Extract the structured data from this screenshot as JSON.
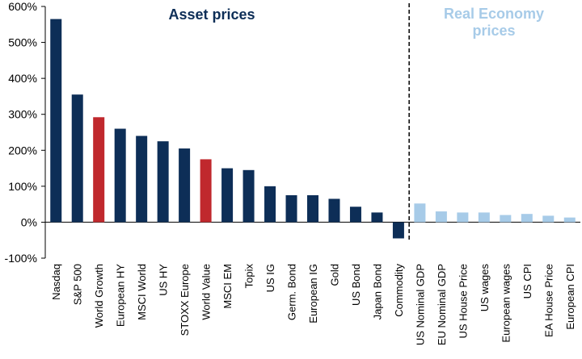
{
  "chart_data": {
    "type": "bar",
    "title": "",
    "xlabel": "",
    "ylabel": "",
    "ylim": [
      -100,
      600
    ],
    "yticks": [
      -100,
      0,
      100,
      200,
      300,
      400,
      500,
      600
    ],
    "ytick_labels": [
      "-100%",
      "0%",
      "100%",
      "200%",
      "300%",
      "400%",
      "500%",
      "600%"
    ],
    "sections": [
      {
        "title": "Asset prices",
        "start": 0,
        "end": 16
      },
      {
        "title_lines": [
          "Real Economy",
          "prices"
        ],
        "start": 17,
        "end": 24
      }
    ],
    "categories": [
      "Nasdaq",
      "S&P 500",
      "World Growth",
      "European HY",
      "MSCI World",
      "US HY",
      "STOXX Europe",
      "World Value",
      "MSCI EM",
      "Topix",
      "US IG",
      "Germ. Bond",
      "European IG",
      "Gold",
      "US Bond",
      "Japan Bond",
      "Commodity",
      "US Nominal GDP",
      "EU Nominal GDP",
      "US House Price",
      "US wages",
      "European wages",
      "US CPI",
      "EA House Price",
      "European CPI"
    ],
    "values": [
      565,
      355,
      292,
      260,
      240,
      225,
      205,
      175,
      150,
      145,
      100,
      75,
      75,
      65,
      43,
      27,
      -45,
      52,
      30,
      27,
      27,
      20,
      23,
      18,
      13
    ],
    "colors": [
      "#0d2e57",
      "#0d2e57",
      "#c0282d",
      "#0d2e57",
      "#0d2e57",
      "#0d2e57",
      "#0d2e57",
      "#c0282d",
      "#0d2e57",
      "#0d2e57",
      "#0d2e57",
      "#0d2e57",
      "#0d2e57",
      "#0d2e57",
      "#0d2e57",
      "#0d2e57",
      "#0d2e57",
      "#a7cbe8",
      "#a7cbe8",
      "#a7cbe8",
      "#a7cbe8",
      "#a7cbe8",
      "#a7cbe8",
      "#a7cbe8",
      "#a7cbe8"
    ],
    "divider_after_index": 16
  }
}
